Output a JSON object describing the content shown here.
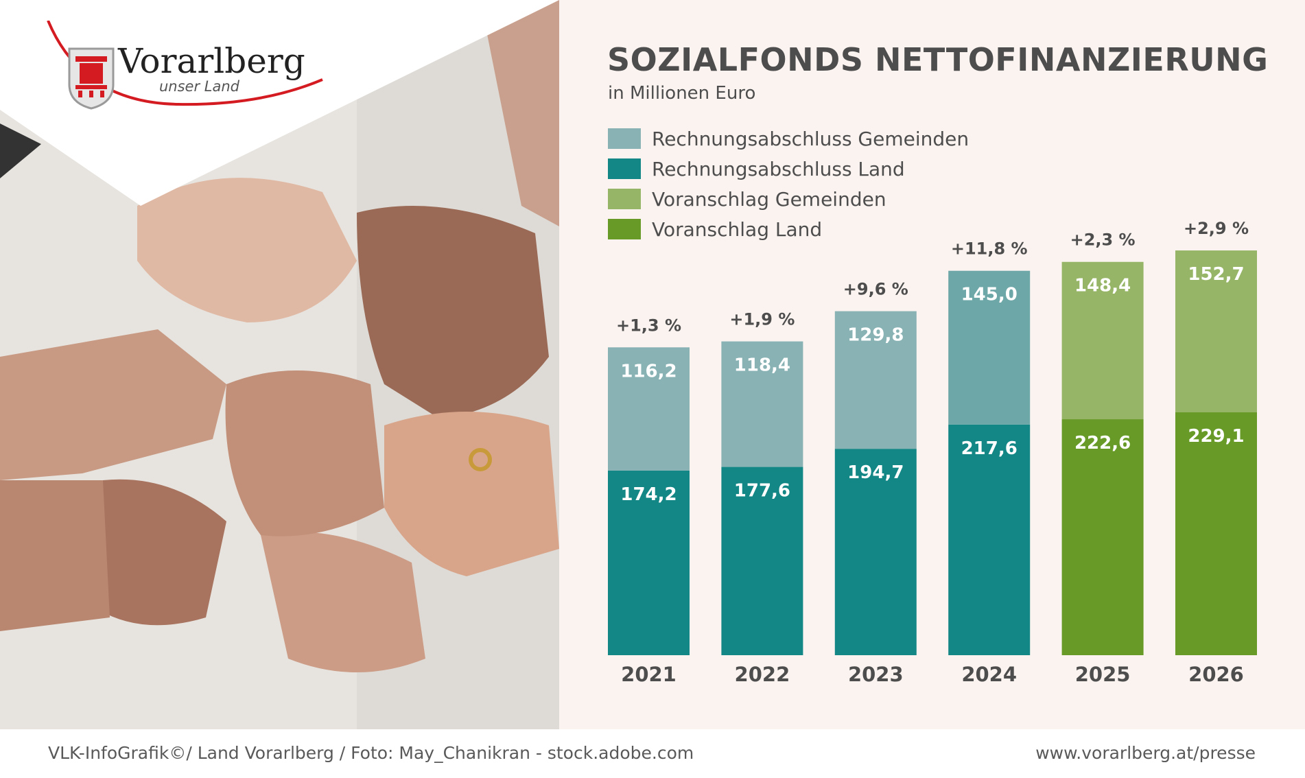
{
  "logo": {
    "name": "Vorarlberg",
    "tagline": "unser Land"
  },
  "header": {
    "title": "SOZIALFONDS NETTOFINANZIERUNG",
    "subtitle": "in Millionen Euro"
  },
  "footer": {
    "credit": "VLK-InfoGrafik©/ Land Vorarlberg / Foto: May_Chanikran - stock.adobe.com",
    "url": "www.vorarlberg.at/presse"
  },
  "legend": [
    {
      "label": "Rechnungsabschluss Gemeinden",
      "color": "#88b2b4"
    },
    {
      "label": "Rechnungsabschluss Land",
      "color": "#138785"
    },
    {
      "label": "Voranschlag Gemeinden",
      "color": "#97b566"
    },
    {
      "label": "Voranschlag Land",
      "color": "#679a27"
    }
  ],
  "chart_data": {
    "type": "bar",
    "stacked": true,
    "categories": [
      "2021",
      "2022",
      "2023",
      "2024",
      "2025",
      "2026"
    ],
    "series": [
      {
        "name": "Land",
        "values": [
          174.2,
          177.6,
          194.7,
          217.6,
          222.6,
          229.1
        ],
        "labels": [
          "174,2",
          "177,6",
          "194,7",
          "217,6",
          "222,6",
          "229,1"
        ]
      },
      {
        "name": "Gemeinden",
        "values": [
          116.2,
          118.4,
          129.8,
          145.0,
          148.4,
          152.7
        ],
        "labels": [
          "116,2",
          "118,4",
          "129,8",
          "145,0",
          "148,4",
          "152,7"
        ]
      }
    ],
    "bar_colors": {
      "land": [
        "#138785",
        "#138785",
        "#138785",
        "#138785",
        "#679a27",
        "#679a27"
      ],
      "gemeinden": [
        "#88b2b4",
        "#88b2b4",
        "#88b2b4",
        "#6ea7a8",
        "#97b566",
        "#97b566"
      ]
    },
    "growth": [
      "+1,3 %",
      "+1,9 %",
      "+9,6 %",
      "+11,8 %",
      "+2,3 %",
      "+2,9 %"
    ],
    "ylim": [
      0,
      400
    ],
    "grid": false,
    "legend_position": "top-left"
  }
}
